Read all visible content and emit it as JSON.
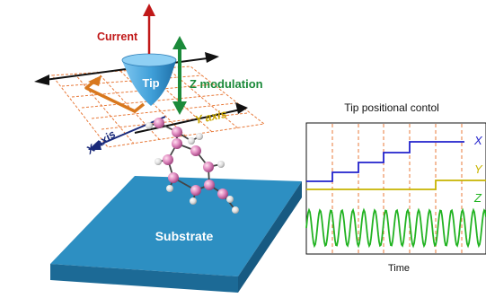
{
  "labels": {
    "current": "Current",
    "tip": "Tip",
    "z_modulation": "Z modulation",
    "y_axis": "Y axis",
    "x_axis": "X axis",
    "substrate": "Substrate"
  },
  "panel": {
    "title": "Tip positional contol",
    "time_label": "Time",
    "traces": [
      {
        "name": "X",
        "color": "#2222cc"
      },
      {
        "name": "Y",
        "color": "#c8b400"
      },
      {
        "name": "Z",
        "color": "#22b322"
      }
    ]
  },
  "colors": {
    "current_arrow": "#c01818",
    "z_arrow": "#1b8a3a",
    "x_axis_text": "#1a2a7a",
    "y_axis_text": "#c8a800",
    "tip": "#3f9fd8",
    "substrate": "#2482b4",
    "scan_grid": "#e87a3a",
    "scan_arrow": "#d8781e",
    "atom_carbon": "#d883b5",
    "atom_hydrogen": "#d8d8d8",
    "bond": "#444444"
  }
}
